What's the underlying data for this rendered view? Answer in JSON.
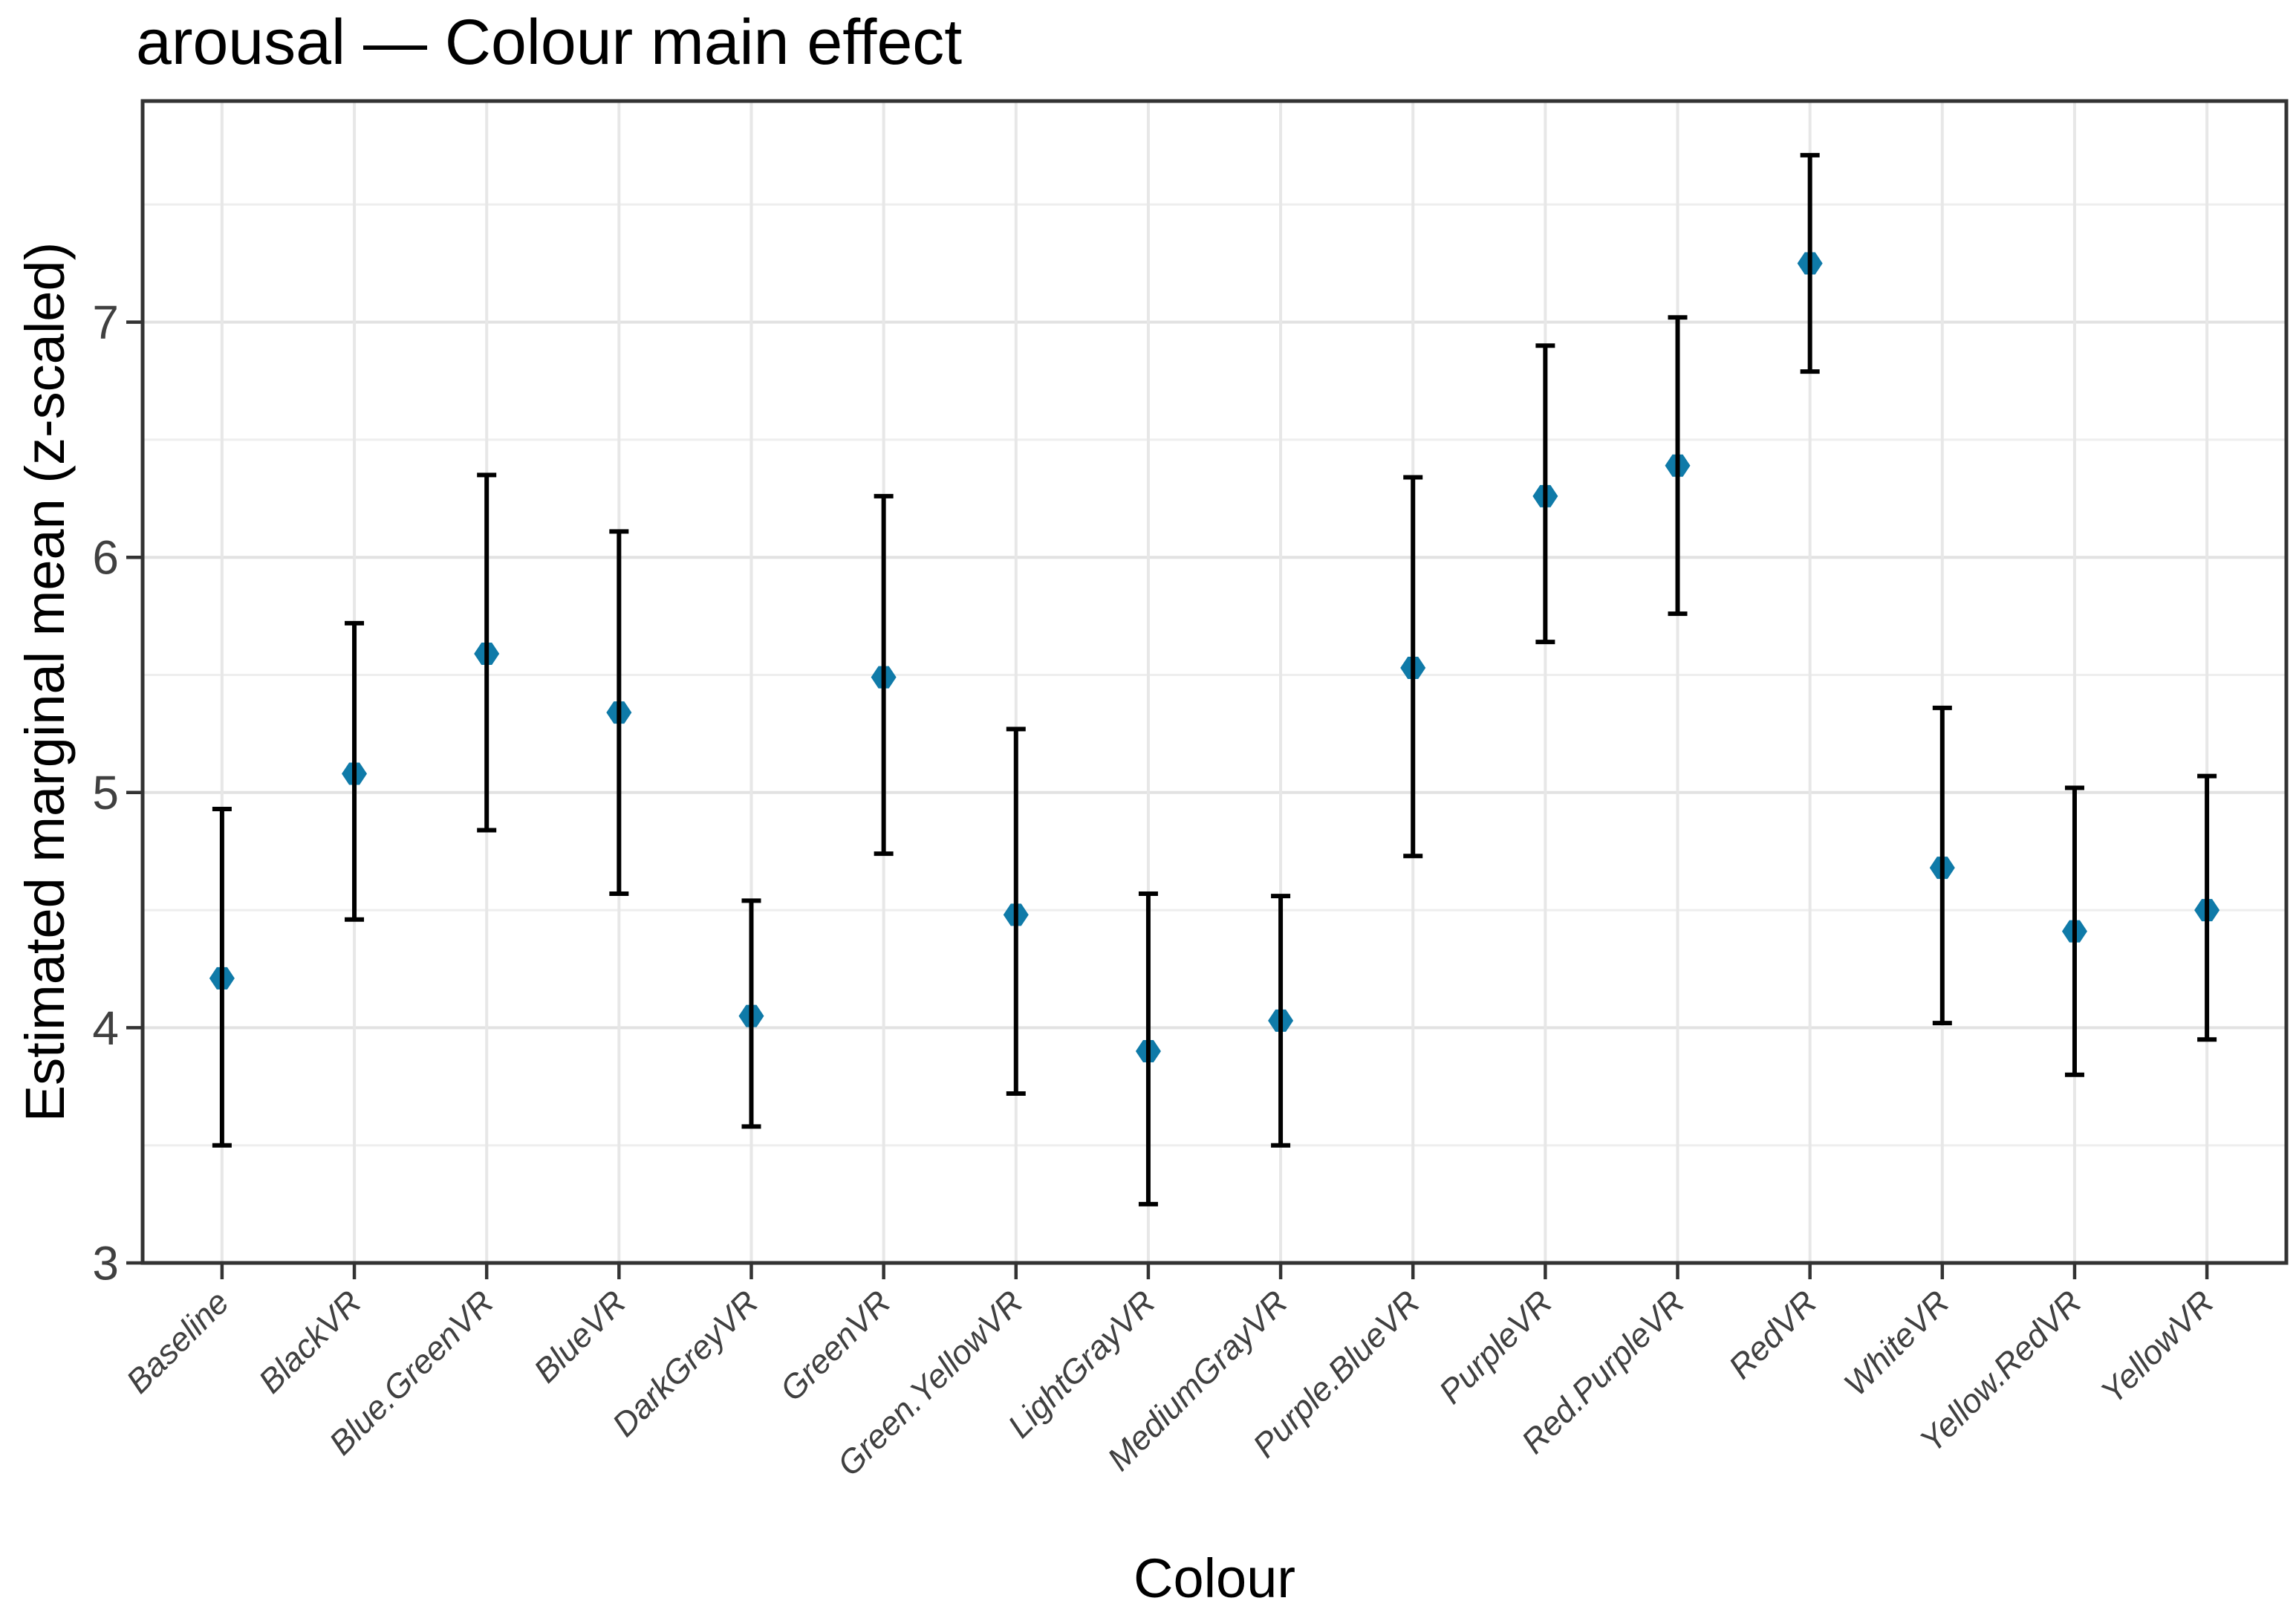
{
  "figure": {
    "title": "arousal — Colour main effect",
    "xlabel": "Colour",
    "ylabel": "Estimated marginal mean (z-scaled)"
  },
  "chart_data": {
    "type": "scatter",
    "subtype": "pointrange (mean with error bars)",
    "title": "arousal — Colour main effect",
    "xlabel": "Colour",
    "ylabel": "Estimated marginal mean (z-scaled)",
    "categories": [
      "Baseline",
      "BlackVR",
      "Blue.GreenVR",
      "BlueVR",
      "DarkGreyVR",
      "GreenVR",
      "Green.YellowVR",
      "LightGrayVR",
      "MediumGrayVR",
      "Purple.BlueVR",
      "PurpleVR",
      "Red.PurpleVR",
      "RedVR",
      "WhiteVR",
      "Yellow.RedVR",
      "YellowVR"
    ],
    "series": [
      {
        "name": "estimated marginal mean",
        "values": [
          4.21,
          5.08,
          5.59,
          5.34,
          4.05,
          5.49,
          4.48,
          3.9,
          4.03,
          5.53,
          6.26,
          6.39,
          7.25,
          4.68,
          4.41,
          4.5
        ],
        "lower": [
          3.5,
          4.46,
          4.84,
          4.57,
          3.58,
          4.74,
          3.72,
          3.25,
          3.5,
          4.73,
          5.64,
          5.76,
          6.79,
          4.02,
          3.8,
          3.95
        ],
        "upper": [
          4.93,
          5.72,
          6.35,
          6.11,
          4.54,
          6.26,
          5.27,
          4.57,
          4.56,
          6.34,
          6.9,
          7.02,
          7.71,
          5.36,
          5.02,
          5.07
        ]
      }
    ],
    "ylim": [
      3,
      7.94
    ],
    "yticks": [
      3,
      4,
      5,
      6,
      7
    ],
    "y_minor_gridlines": [
      3.5,
      4.5,
      5.5,
      6.5,
      7.5
    ],
    "grid": "major horizontal + vertical category gridlines, minor horizontal at 0.5 steps",
    "legend": "none",
    "marker": "filled diamond",
    "error_bar_caps": true
  },
  "style": {
    "point_color": "#0f7aa8",
    "errorbar_color": "#000000",
    "grid_major_color": "#e2e2e2",
    "grid_minor_color": "#eeeeee",
    "grid_vertical_color": "#e7e7e7",
    "panel_border_color": "#333333",
    "tick_color": "#333333",
    "tick_label_color": "#404040",
    "title_color": "#000000",
    "background": "#ffffff"
  }
}
